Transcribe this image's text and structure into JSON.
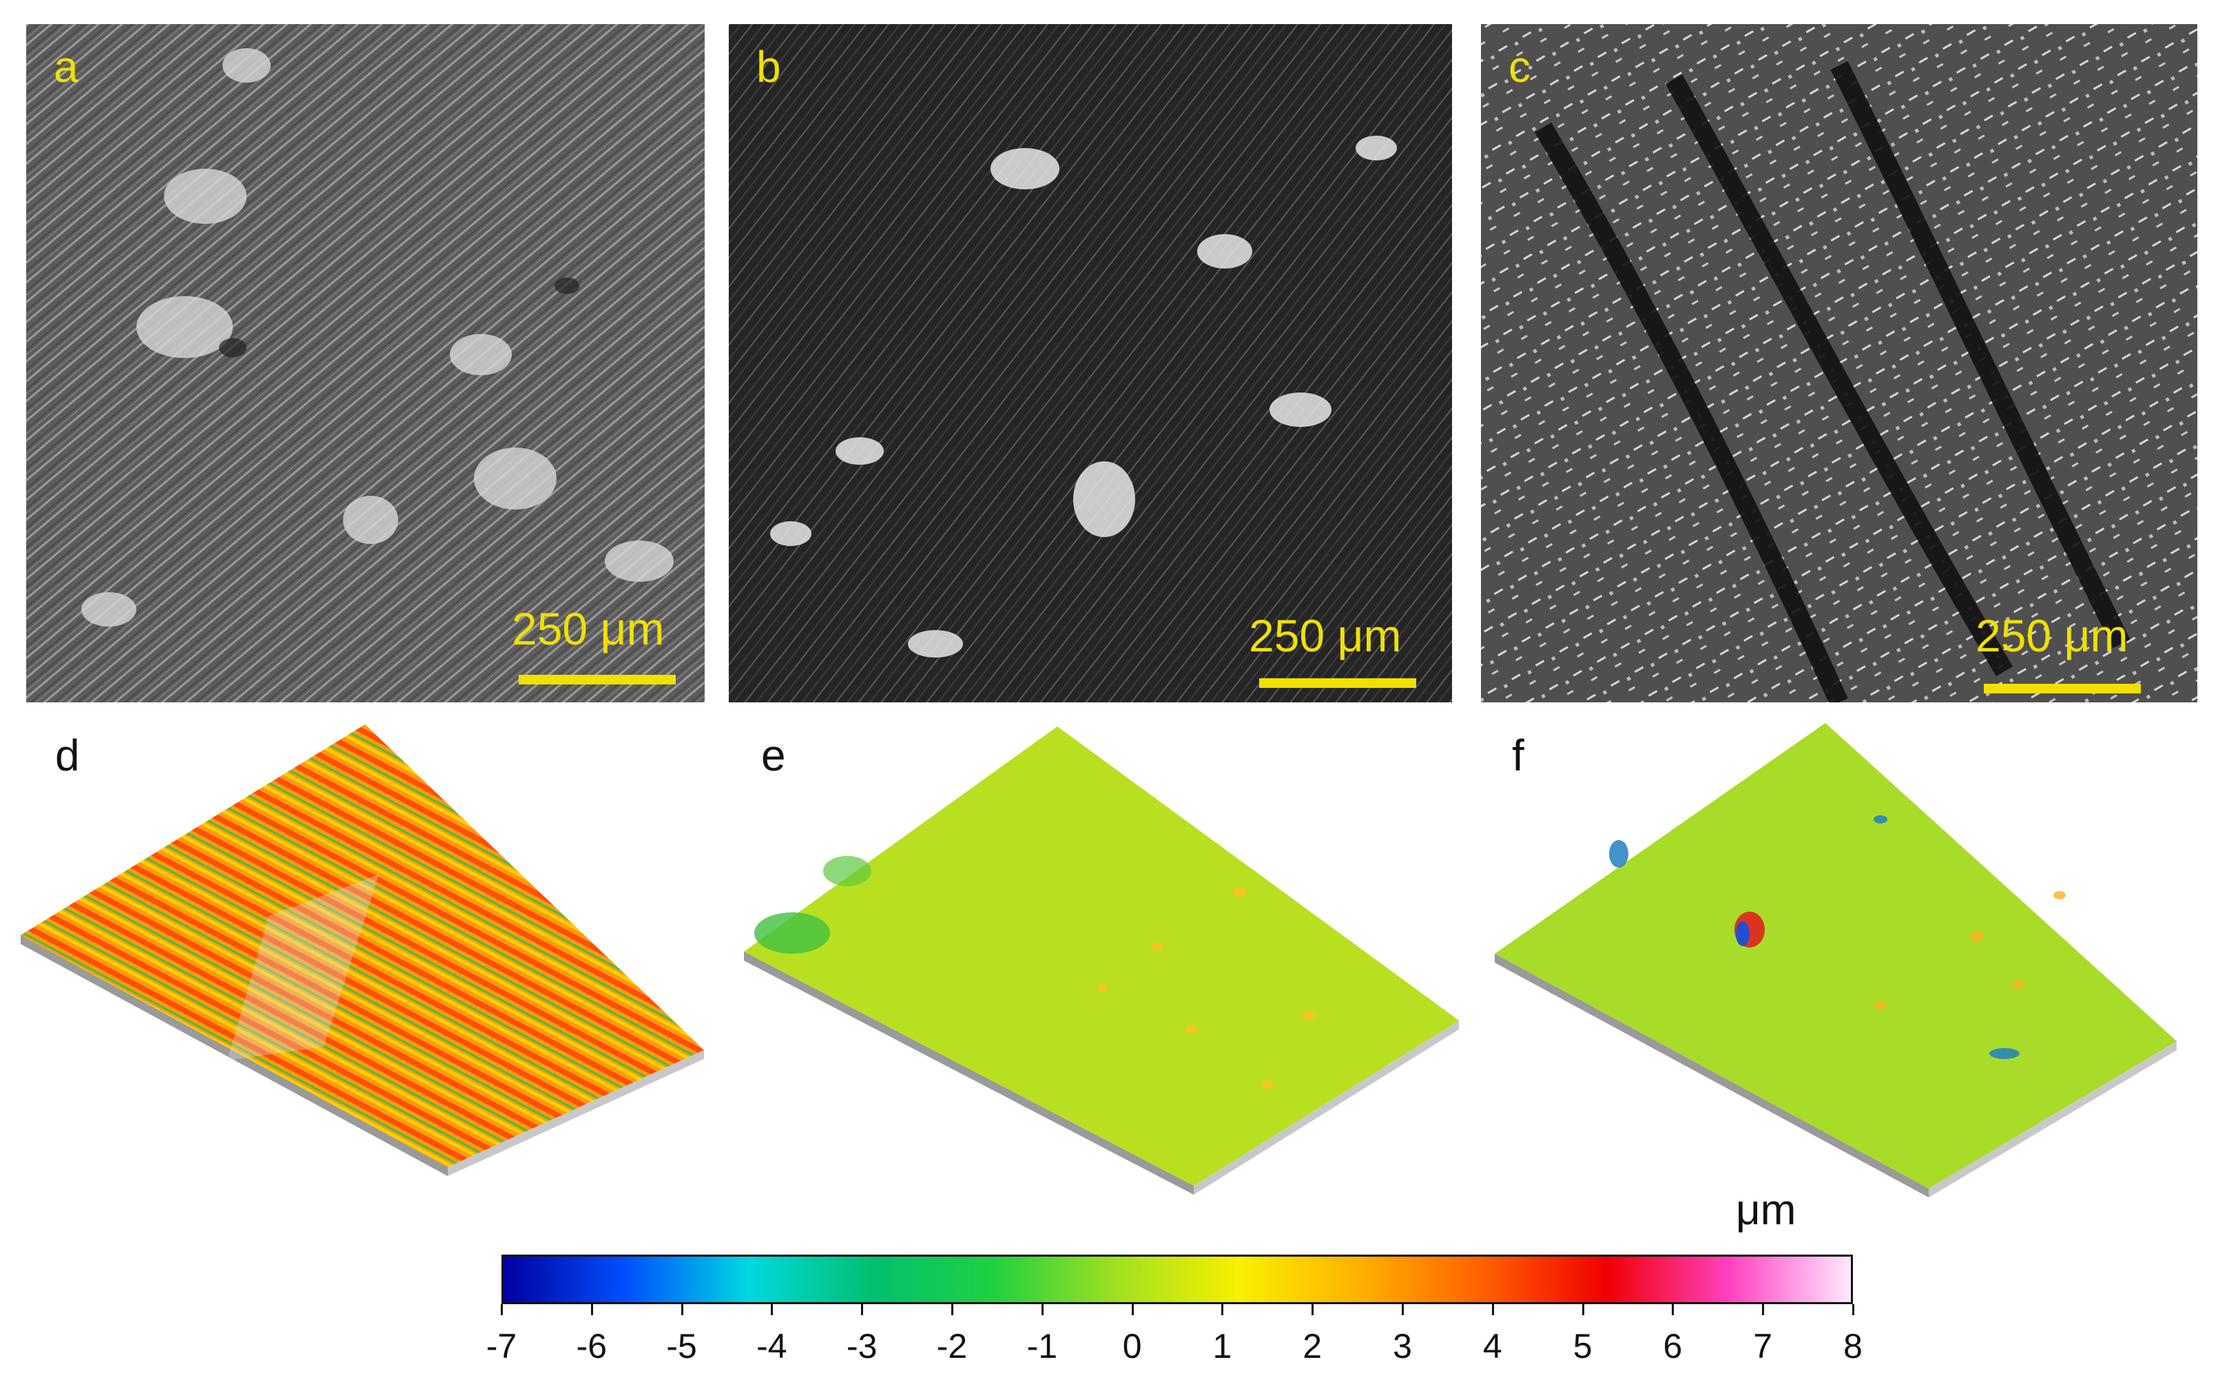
{
  "figure": {
    "panels": [
      {
        "label": "a",
        "kind": "sem",
        "scale_bar": "250 μm"
      },
      {
        "label": "b",
        "kind": "sem",
        "scale_bar": "250 μm"
      },
      {
        "label": "c",
        "kind": "sem",
        "scale_bar": "250 μm"
      },
      {
        "label": "d",
        "kind": "3d-topography"
      },
      {
        "label": "e",
        "kind": "3d-topography"
      },
      {
        "label": "f",
        "kind": "3d-topography"
      }
    ],
    "colorbar": {
      "unit": "μm",
      "ticks": [
        "-7",
        "-6",
        "-5",
        "-4",
        "-3",
        "-2",
        "-1",
        "0",
        "1",
        "2",
        "3",
        "4",
        "5",
        "6",
        "7",
        "8"
      ],
      "colors": [
        "#0000a0",
        "#0050ff",
        "#00d8e0",
        "#00c070",
        "#20d040",
        "#a0e020",
        "#f8f000",
        "#ffb000",
        "#ff6000",
        "#f00000",
        "#ff40c0",
        "#ffe8ff"
      ]
    }
  }
}
